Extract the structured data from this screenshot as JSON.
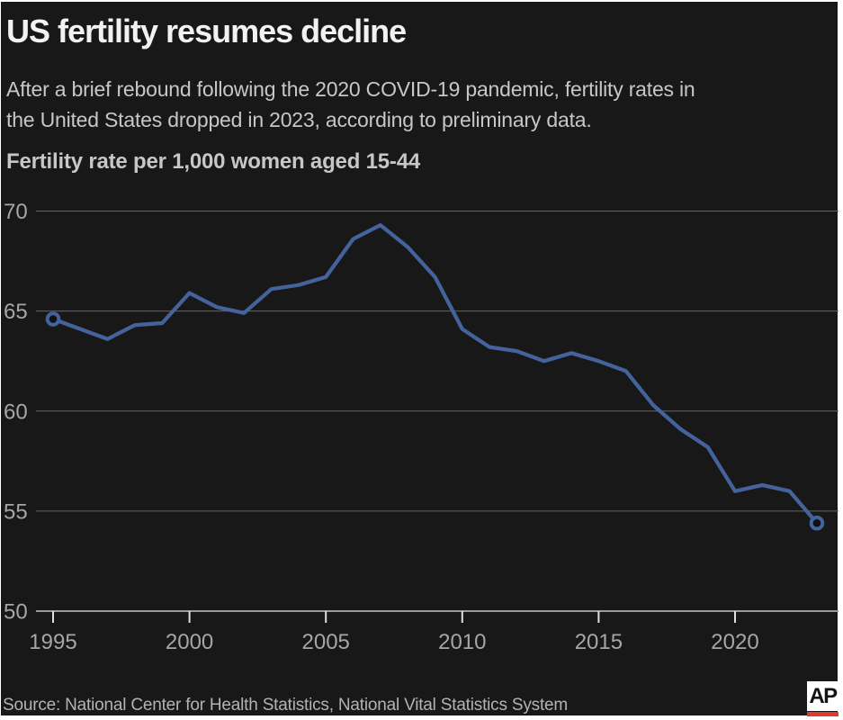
{
  "header": {
    "title": "US fertility resumes decline",
    "description": "After a brief rebound following the 2020 COVID-19 pandemic, fertility rates in\nthe United States dropped in 2023, according to preliminary data."
  },
  "chart_data": {
    "type": "line",
    "title": "Fertility rate per 1,000 women aged 15-44",
    "x": [
      1995,
      1996,
      1997,
      1998,
      1999,
      2000,
      2001,
      2002,
      2003,
      2004,
      2005,
      2006,
      2007,
      2008,
      2009,
      2010,
      2011,
      2012,
      2013,
      2014,
      2015,
      2016,
      2017,
      2018,
      2019,
      2020,
      2021,
      2022,
      2023
    ],
    "values": [
      64.6,
      64.1,
      63.6,
      64.3,
      64.4,
      65.9,
      65.2,
      64.9,
      66.1,
      66.3,
      66.7,
      68.6,
      69.3,
      68.2,
      66.7,
      64.1,
      63.2,
      63.0,
      62.5,
      62.9,
      62.5,
      62.0,
      60.3,
      59.1,
      58.2,
      56.0,
      56.3,
      56.0,
      54.4
    ],
    "xlabel": "",
    "ylabel": "Fertility rate per 1,000 women aged 15-44",
    "ylim": [
      50,
      70
    ],
    "yticks": [
      70,
      65,
      60,
      55,
      50
    ],
    "xticks": [
      1995,
      2000,
      2005,
      2010,
      2015,
      2020
    ],
    "grid": "horizontal-only",
    "legend": "none",
    "markers": "open circle on first and last point"
  },
  "footer": {
    "source": "Source: National Center for Health Statistics, National Vital Statistics System",
    "logo_text": "AP"
  },
  "colors": {
    "background": "#181818",
    "frame": "#ffffff",
    "line": "#44639C",
    "marker_fill": "#101014",
    "gridline": "#646464",
    "axis_line": "#9a9a9a",
    "tick_mark": "#e0e0e0",
    "logo_red": "#e23b2e"
  }
}
